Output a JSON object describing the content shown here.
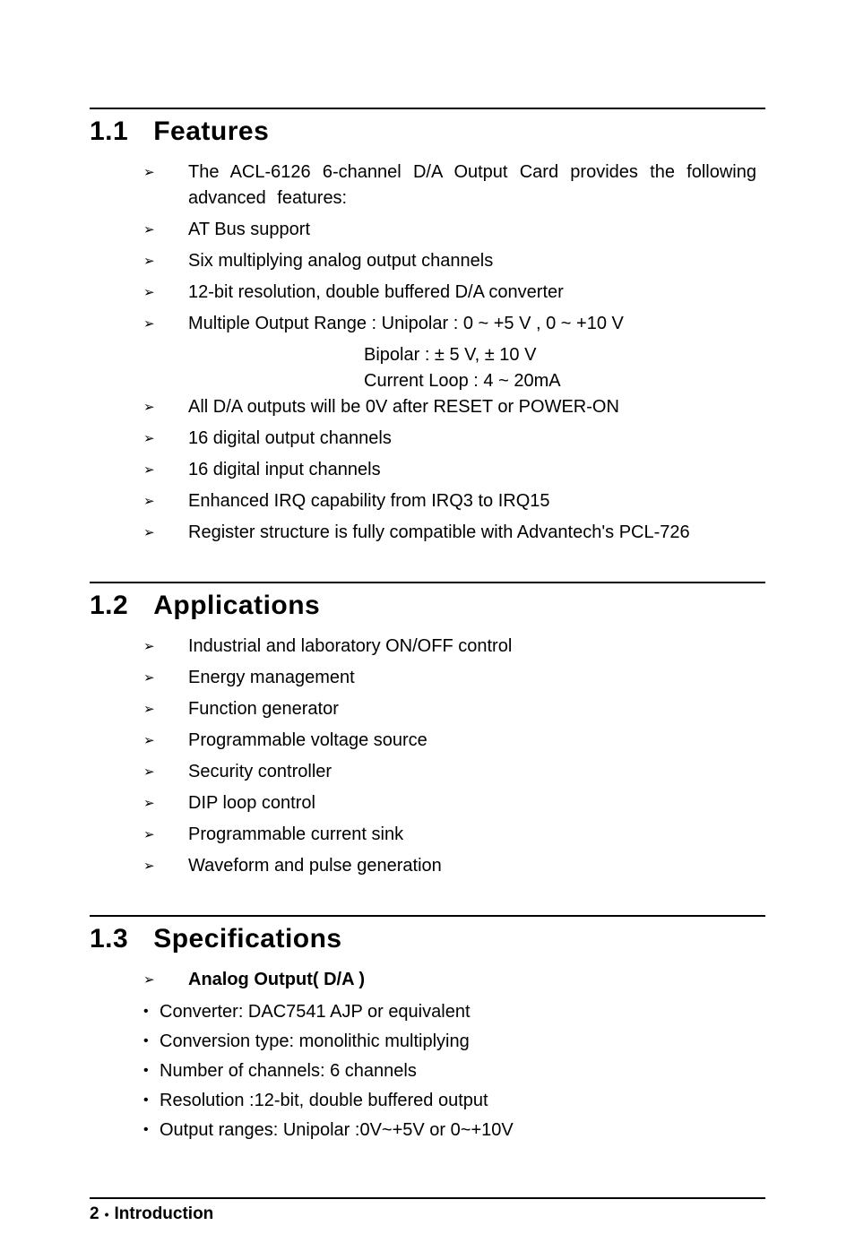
{
  "sections": {
    "features": {
      "number": "1.1",
      "title": "Features",
      "items": [
        "The ACL-6126 6-channel D/A Output Card provides the following advanced features:",
        "AT Bus support",
        "Six multiplying analog output channels",
        "12-bit resolution, double buffered D/A converter",
        "Multiple Output Range : Unipolar : 0 ~ +5 V ,  0 ~ +10 V"
      ],
      "sub_lines": [
        "Bipolar  : ± 5 V, ± 10 V",
        "Current Loop : 4 ~ 20mA"
      ],
      "items_after": [
        "All D/A outputs will be 0V after RESET or POWER-ON",
        "16 digital output channels",
        "16 digital input channels",
        "Enhanced IRQ capability from IRQ3 to IRQ15",
        "Register structure is fully compatible with Advantech's PCL-726"
      ]
    },
    "applications": {
      "number": "1.2",
      "title": "Applications",
      "items": [
        "Industrial and laboratory ON/OFF control",
        "Energy management",
        "Function generator",
        "Programmable voltage source",
        "Security controller",
        "DIP loop control",
        "Programmable current sink",
        "Waveform and pulse generation"
      ]
    },
    "specifications": {
      "number": "1.3",
      "title": "Specifications",
      "header_item": "Analog Output( D/A )",
      "dot_items": [
        "Converter: DAC7541 AJP or equivalent",
        "Conversion type: monolithic multiplying",
        "Number of channels: 6 channels",
        "Resolution :12-bit, double buffered output",
        "Output ranges:  Unipolar :0V~+5V or 0~+10V"
      ]
    }
  },
  "footer": {
    "page": "2",
    "label": "Introduction"
  }
}
